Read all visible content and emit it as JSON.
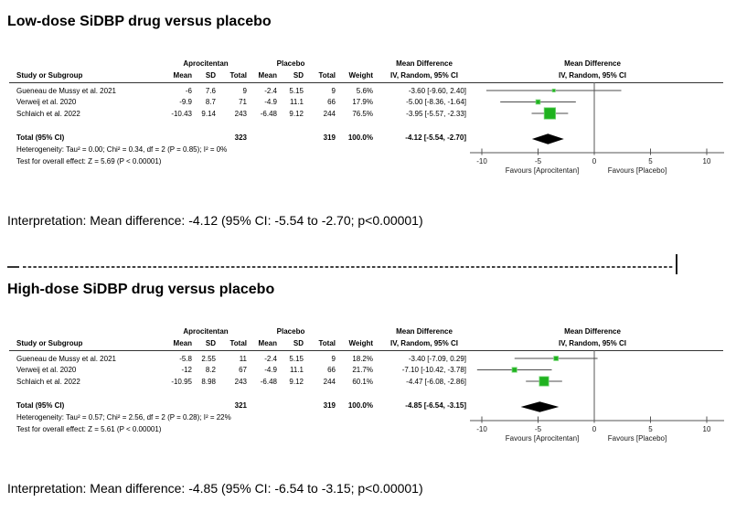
{
  "figure": {
    "background": "#ffffff",
    "marker_color": "#1fb21f",
    "marker_border": "#79d879",
    "ci_line_color": "#4d4d4d",
    "axis_color": "#555555",
    "diamond_color": "#000000"
  },
  "divider": {
    "style": "dashed-line",
    "end_cap": "|"
  },
  "chart_data": [
    {
      "type": "forest",
      "title": "Low-dose SiDBP drug versus placebo",
      "effect_header": "Mean Difference",
      "method": "IV, Random, 95% CI",
      "groups": [
        "Aprocitentan",
        "Placebo"
      ],
      "columns": [
        "Study or Subgroup",
        "Mean",
        "SD",
        "Total",
        "Mean",
        "SD",
        "Total",
        "Weight"
      ],
      "studies": [
        {
          "name": "Gueneau de Mussy et al. 2021",
          "mean1": "-6",
          "sd1": "7.6",
          "total1": "9",
          "mean2": "-2.4",
          "sd2": "5.15",
          "total2": "9",
          "weight": "5.6%",
          "weight_pct": 5.6,
          "md": -3.6,
          "lo": -9.6,
          "hi": 2.4,
          "ci_label": "-3.60 [-9.60, 2.40]"
        },
        {
          "name": "Verweij et al. 2020",
          "mean1": "-9.9",
          "sd1": "8.7",
          "total1": "71",
          "mean2": "-4.9",
          "sd2": "11.1",
          "total2": "66",
          "weight": "17.9%",
          "weight_pct": 17.9,
          "md": -5.0,
          "lo": -8.36,
          "hi": -1.64,
          "ci_label": "-5.00 [-8.36, -1.64]"
        },
        {
          "name": "Schlaich et al. 2022",
          "mean1": "-10.43",
          "sd1": "9.14",
          "total1": "243",
          "mean2": "-6.48",
          "sd2": "9.12",
          "total2": "244",
          "weight": "76.5%",
          "weight_pct": 76.5,
          "md": -3.95,
          "lo": -5.57,
          "hi": -2.33,
          "ci_label": "-3.95 [-5.57, -2.33]"
        }
      ],
      "total": {
        "label": "Total (95% CI)",
        "total1": "323",
        "total2": "319",
        "weight": "100.0%",
        "md": -4.12,
        "lo": -5.54,
        "hi": -2.7,
        "ci_label": "-4.12 [-5.54, -2.70]"
      },
      "heterogeneity": "Heterogeneity: Tau² = 0.00; Chi² = 0.34, df = 2 (P = 0.85); I² = 0%",
      "overall_test": "Test for overall effect: Z = 5.69 (P < 0.00001)",
      "axis": {
        "ticks": [
          -10,
          -5,
          0,
          5,
          10
        ],
        "xlim": [
          -10,
          10
        ],
        "favours_left": "Favours [Aprocitentan]",
        "favours_right": "Favours [Placebo]"
      },
      "interpretation": "Interpretation: Mean difference: -4.12 (95% CI: -5.54 to -2.70; p<0.00001)"
    },
    {
      "type": "forest",
      "title": "High-dose SiDBP drug versus placebo",
      "effect_header": "Mean Difference",
      "method": "IV, Random, 95% CI",
      "groups": [
        "Aprocitentan",
        "Placebo"
      ],
      "columns": [
        "Study or Subgroup",
        "Mean",
        "SD",
        "Total",
        "Mean",
        "SD",
        "Total",
        "Weight"
      ],
      "studies": [
        {
          "name": "Gueneau de Mussy et al. 2021",
          "mean1": "-5.8",
          "sd1": "2.55",
          "total1": "11",
          "mean2": "-2.4",
          "sd2": "5.15",
          "total2": "9",
          "weight": "18.2%",
          "weight_pct": 18.2,
          "md": -3.4,
          "lo": -7.09,
          "hi": 0.29,
          "ci_label": "-3.40 [-7.09, 0.29]"
        },
        {
          "name": "Verweij et al. 2020",
          "mean1": "-12",
          "sd1": "8.2",
          "total1": "67",
          "mean2": "-4.9",
          "sd2": "11.1",
          "total2": "66",
          "weight": "21.7%",
          "weight_pct": 21.7,
          "md": -7.1,
          "lo": -10.42,
          "hi": -3.78,
          "ci_label": "-7.10 [-10.42, -3.78]"
        },
        {
          "name": "Schlaich et al. 2022",
          "mean1": "-10.95",
          "sd1": "8.98",
          "total1": "243",
          "mean2": "-6.48",
          "sd2": "9.12",
          "total2": "244",
          "weight": "60.1%",
          "weight_pct": 60.1,
          "md": -4.47,
          "lo": -6.08,
          "hi": -2.86,
          "ci_label": "-4.47 [-6.08, -2.86]"
        }
      ],
      "total": {
        "label": "Total (95% CI)",
        "total1": "321",
        "total2": "319",
        "weight": "100.0%",
        "md": -4.85,
        "lo": -6.54,
        "hi": -3.15,
        "ci_label": "-4.85 [-6.54, -3.15]"
      },
      "heterogeneity": "Heterogeneity: Tau² = 0.57; Chi² = 2.56, df = 2 (P = 0.28); I² = 22%",
      "overall_test": "Test for overall effect: Z = 5.61 (P < 0.00001)",
      "axis": {
        "ticks": [
          -10,
          -5,
          0,
          5,
          10
        ],
        "xlim": [
          -10,
          10
        ],
        "favours_left": "Favours [Aprocitentan]",
        "favours_right": "Favours [Placebo]"
      },
      "interpretation": "Interpretation: Mean difference: -4.85 (95% CI: -6.54 to -3.15; p<0.00001)"
    }
  ]
}
